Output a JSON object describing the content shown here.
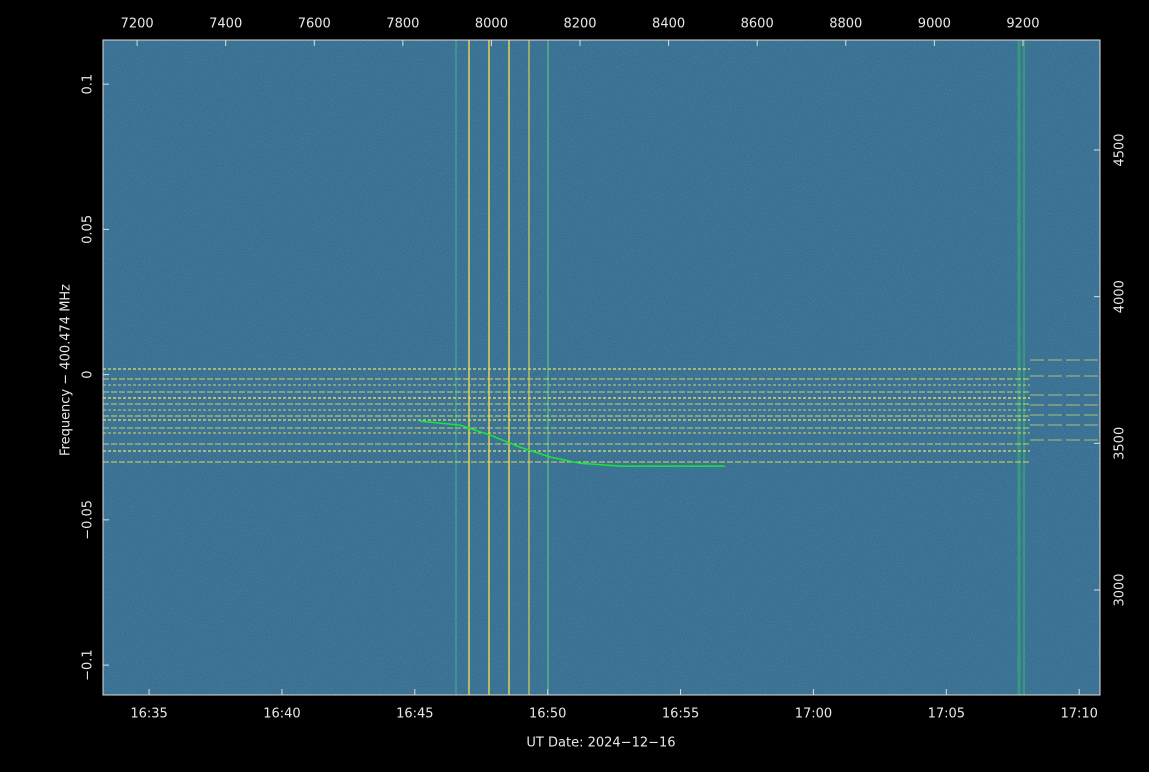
{
  "chart_data": {
    "type": "line",
    "xlabel": "UT Date: 2024−12−16",
    "ylabel": "Frequency − 400.474 MHz",
    "xlim": [
      7123,
      9374
    ],
    "xticks": [
      7200,
      7400,
      7600,
      7800,
      8000,
      8200,
      8400,
      8600,
      8800,
      9000,
      9200
    ],
    "time_ticks": [
      {
        "value": 7227,
        "label": "16:35"
      },
      {
        "value": 7527,
        "label": "16:40"
      },
      {
        "value": 7827,
        "label": "16:45"
      },
      {
        "value": 8127,
        "label": "16:50"
      },
      {
        "value": 8427,
        "label": "16:55"
      },
      {
        "value": 8727,
        "label": "17:00"
      },
      {
        "value": 9027,
        "label": "17:05"
      },
      {
        "value": 9327,
        "label": "17:10"
      }
    ],
    "ylim": [
      -0.1103,
      0.1152
    ],
    "yticks": [
      {
        "value": 0.1,
        "label": "0.1"
      },
      {
        "value": 0.05,
        "label": "0.05"
      },
      0,
      {
        "value": -0.05,
        "label": "−0.05"
      },
      {
        "value": -0.1,
        "label": "−0.1"
      }
    ],
    "y2lim": [
      2642,
      4875
    ],
    "y2ticks": [
      3000,
      3500,
      4000,
      4500
    ],
    "series": [
      {
        "color": "#19e63c",
        "x": [
          7839,
          7929,
          7997,
          8065,
          8133,
          8200,
          8291,
          8426,
          8527
        ],
        "values": [
          -0.016,
          -0.0174,
          -0.0208,
          -0.025,
          -0.0284,
          -0.0305,
          -0.0315,
          -0.0315,
          -0.0315
        ]
      }
    ]
  }
}
